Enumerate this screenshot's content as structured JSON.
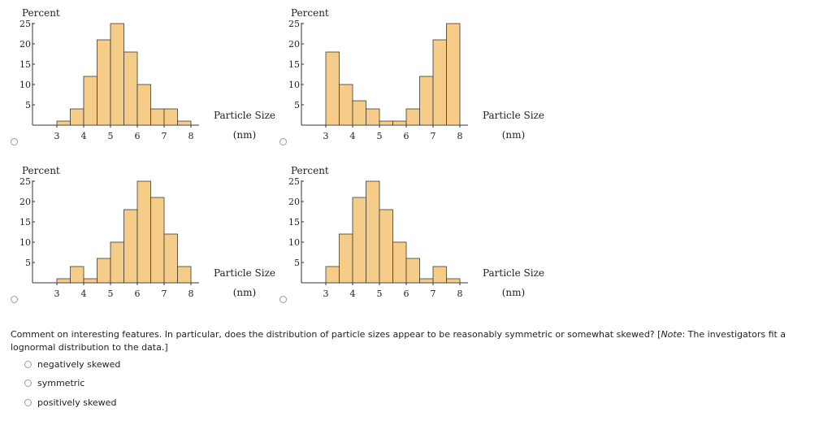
{
  "charts": [
    {
      "id": "a",
      "ylabel": "Percent",
      "xlabel_line1": "Particle Size",
      "xlabel_line2": "(nm)"
    },
    {
      "id": "b",
      "ylabel": "Percent",
      "xlabel_line1": "Particle Size",
      "xlabel_line2": "(nm)"
    },
    {
      "id": "c",
      "ylabel": "Percent",
      "xlabel_line1": "Particle Size",
      "xlabel_line2": "(nm)"
    },
    {
      "id": "d",
      "ylabel": "Percent",
      "xlabel_line1": "Particle Size",
      "xlabel_line2": "(nm)"
    }
  ],
  "chart_data": [
    {
      "type": "bar",
      "ylabel": "Percent",
      "xlabel": "Particle Size (nm)",
      "bin_edges": [
        3,
        3.5,
        4,
        4.5,
        5,
        5.5,
        6,
        6.5,
        7,
        7.5,
        8
      ],
      "values": [
        1,
        4,
        12,
        21,
        25,
        18,
        10,
        4,
        4,
        1
      ],
      "xticks": [
        3,
        4,
        5,
        6,
        7,
        8
      ],
      "yticks": [
        5,
        10,
        15,
        20,
        25
      ],
      "ylim": [
        0,
        26
      ],
      "xlim": [
        2.6,
        8.3
      ]
    },
    {
      "type": "bar",
      "ylabel": "Percent",
      "xlabel": "Particle Size (nm)",
      "bin_edges": [
        3,
        3.5,
        4,
        4.5,
        5,
        5.5,
        6,
        6.5,
        7,
        7.5,
        8
      ],
      "values": [
        18,
        10,
        6,
        4,
        1,
        1,
        4,
        12,
        21,
        25
      ],
      "xticks": [
        3,
        4,
        5,
        6,
        7,
        8
      ],
      "yticks": [
        5,
        10,
        15,
        20,
        25
      ],
      "ylim": [
        0,
        26
      ],
      "xlim": [
        2.6,
        8.3
      ]
    },
    {
      "type": "bar",
      "ylabel": "Percent",
      "xlabel": "Particle Size (nm)",
      "bin_edges": [
        3,
        3.5,
        4,
        4.5,
        5,
        5.5,
        6,
        6.5,
        7,
        7.5,
        8
      ],
      "values": [
        1,
        4,
        1,
        6,
        10,
        18,
        25,
        21,
        12,
        4
      ],
      "xticks": [
        3,
        4,
        5,
        6,
        7,
        8
      ],
      "yticks": [
        5,
        10,
        15,
        20,
        25
      ],
      "ylim": [
        0,
        26
      ],
      "xlim": [
        2.6,
        8.3
      ]
    },
    {
      "type": "bar",
      "ylabel": "Percent",
      "xlabel": "Particle Size (nm)",
      "bin_edges": [
        3,
        3.5,
        4,
        4.5,
        5,
        5.5,
        6,
        6.5,
        7,
        7.5,
        8
      ],
      "values": [
        4,
        12,
        21,
        25,
        18,
        10,
        6,
        1,
        4,
        1
      ],
      "xticks": [
        3,
        4,
        5,
        6,
        7,
        8
      ],
      "yticks": [
        5,
        10,
        15,
        20,
        25
      ],
      "ylim": [
        0,
        26
      ],
      "xlim": [
        2.6,
        8.3
      ]
    }
  ],
  "question": {
    "prefix": "Comment on interesting features. In particular, does the distribution of particle sizes appear to be reasonably symmetric or somewhat skewed? [",
    "note_label": "Note",
    "suffix": ": The investigators fit a lognormal distribution to the data.]"
  },
  "options": [
    "negatively skewed",
    "symmetric",
    "positively skewed"
  ],
  "colors": {
    "bar_fill": "#f5cd88",
    "bar_stroke": "#3a3a3a",
    "axis": "#333333",
    "radio_border": "#9a9a9a"
  }
}
